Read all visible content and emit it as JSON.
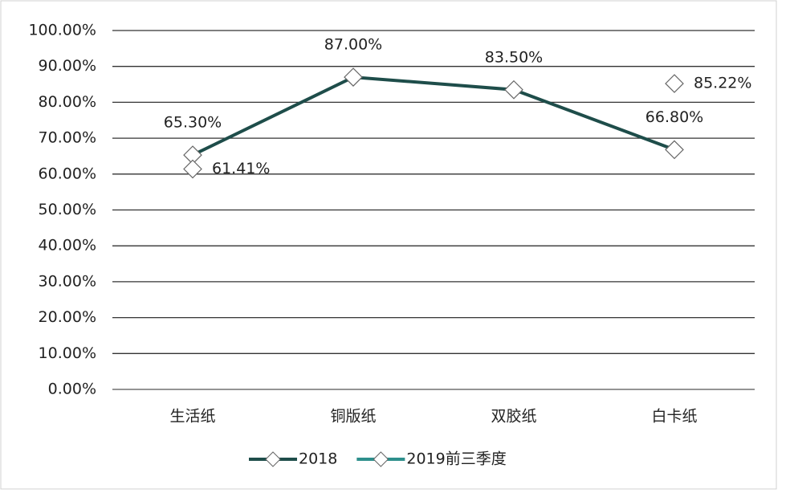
{
  "chart_data": {
    "type": "line",
    "categories": [
      "生活纸",
      "铜版纸",
      "双胶纸",
      "白卡纸"
    ],
    "series": [
      {
        "name": "2018",
        "color": "#1e4d4a",
        "values": [
          65.3,
          87,
          83.5,
          66.8
        ],
        "value_labels": [
          "65.30%",
          "87.00%",
          "83.50%",
          "66.80%"
        ]
      },
      {
        "name": "2019前三季度",
        "color": "#2e8f8c",
        "values": [
          61.41,
          null,
          null,
          85.22
        ],
        "value_labels": [
          "61.41%",
          null,
          null,
          "85.22%"
        ]
      }
    ],
    "ylim": [
      0,
      100
    ],
    "yticks": [
      {
        "value": 0,
        "label": "0.00%"
      },
      {
        "value": 10,
        "label": "10.00%"
      },
      {
        "value": 20,
        "label": "20.00%"
      },
      {
        "value": 30,
        "label": "30.00%"
      },
      {
        "value": 40,
        "label": "40.00%"
      },
      {
        "value": 50,
        "label": "50.00%"
      },
      {
        "value": 60,
        "label": "60.00%"
      },
      {
        "value": 70,
        "label": "70.00%"
      },
      {
        "value": 80,
        "label": "80.00%"
      },
      {
        "value": 90,
        "label": "90.00%"
      },
      {
        "value": 100,
        "label": "100.00%"
      }
    ],
    "grid": true,
    "legend": "bottom"
  }
}
